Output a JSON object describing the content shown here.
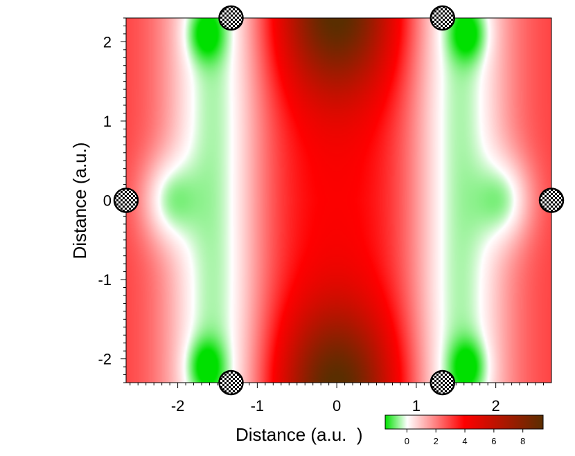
{
  "chart_data": {
    "type": "heatmap",
    "title": "",
    "xlabel": "Distance (a.u.  )",
    "ylabel": "Distance (a.u.)",
    "xlim": [
      -2.65,
      2.7
    ],
    "ylim": [
      -2.3,
      2.3
    ],
    "x_ticks": [
      -2,
      -1,
      0,
      1,
      2
    ],
    "y_ticks": [
      2,
      1,
      0,
      -1,
      -2
    ],
    "grid": false,
    "colorbar": {
      "range": [
        -1.5,
        9.4
      ],
      "ticks": [
        0,
        2,
        4,
        6,
        8
      ],
      "colors": [
        "#00e000",
        "#ffffff",
        "#ff0000",
        "#5a2e00"
      ]
    },
    "atoms": [
      {
        "x": -1.33,
        "y": 2.3
      },
      {
        "x": 1.33,
        "y": 2.3
      },
      {
        "x": -2.65,
        "y": 0.0
      },
      {
        "x": 2.7,
        "y": 0.0
      },
      {
        "x": -1.33,
        "y": -2.3
      },
      {
        "x": 1.33,
        "y": -2.3
      }
    ]
  }
}
